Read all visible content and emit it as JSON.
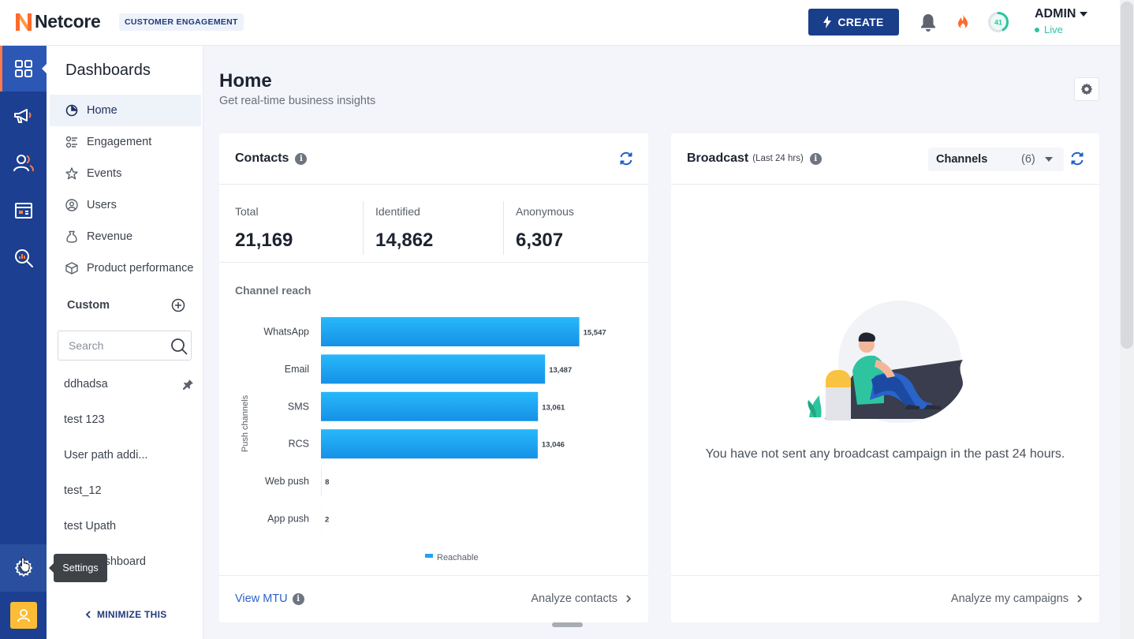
{
  "header": {
    "brand": "Netcore",
    "product": "CUSTOMER ENGAGEMENT",
    "create_label": "CREATE",
    "progress_value": "41",
    "progress_fraction": 0.41,
    "user_name": "ADMIN",
    "user_status": "Live"
  },
  "rail": {
    "items": [
      "dashboards-icon",
      "campaigns-icon",
      "audience-icon",
      "content-icon",
      "analytics-icon"
    ],
    "settings_tooltip": "Settings"
  },
  "sidebar": {
    "title": "Dashboards",
    "nav": [
      {
        "label": "Home",
        "icon": "home-icon"
      },
      {
        "label": "Engagement",
        "icon": "engagement-icon"
      },
      {
        "label": "Events",
        "icon": "star-icon"
      },
      {
        "label": "Users",
        "icon": "users-icon"
      },
      {
        "label": "Revenue",
        "icon": "revenue-icon"
      },
      {
        "label": "Product performance",
        "icon": "box-icon"
      }
    ],
    "custom_label": "Custom",
    "search_placeholder": "Search",
    "custom_list": [
      "ddhadsa",
      "test 123",
      "User path addi...",
      "test_12",
      "test Upath",
      "RFM dashboard"
    ],
    "minimize_label": "MINIMIZE THIS"
  },
  "page": {
    "title": "Home",
    "subtitle": "Get real-time business insights"
  },
  "contacts": {
    "title": "Contacts",
    "stats": [
      {
        "label": "Total",
        "value": "21,169"
      },
      {
        "label": "Identified",
        "value": "14,862"
      },
      {
        "label": "Anonymous",
        "value": "6,307"
      }
    ],
    "reach_title": "Channel reach",
    "view_mtu": "View MTU",
    "analyze": "Analyze contacts"
  },
  "chart_data": {
    "type": "bar",
    "orientation": "horizontal",
    "categories": [
      "WhatsApp",
      "Email",
      "SMS",
      "RCS",
      "Web push",
      "App push"
    ],
    "values": [
      15547,
      13487,
      13061,
      13046,
      8,
      2
    ],
    "value_labels": [
      "15,547",
      "13,487",
      "13,061",
      "13,046",
      "8",
      "2"
    ],
    "ylabel": "Push channels",
    "series": [
      {
        "name": "Reachable",
        "values": [
          15547,
          13487,
          13061,
          13046,
          8,
          2
        ]
      }
    ],
    "xlim": [
      0,
      16800
    ],
    "legend": "bottom-center",
    "bar_color": "#1ea4f2"
  },
  "broadcast": {
    "title": "Broadcast",
    "subtitle": "(Last 24 hrs)",
    "channels_label": "Channels",
    "channels_count": "(6)",
    "empty_message": "You have not sent any broadcast campaign in the past 24 hours.",
    "analyze": "Analyze my campaigns"
  },
  "colors": {
    "brand_blue": "#193e8a",
    "rail_blue": "#1c3f91",
    "accent_orange": "#ff6a2b",
    "link_blue": "#2b62c9",
    "live_green": "#2ec4a0"
  }
}
